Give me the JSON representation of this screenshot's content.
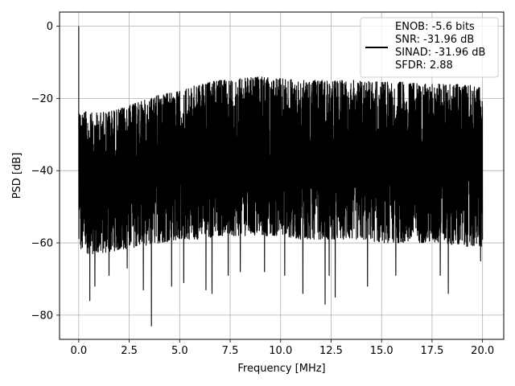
{
  "chart_data": {
    "type": "line",
    "title": "",
    "xlabel": "Frequency [MHz]",
    "ylabel": "PSD [dB]",
    "xlim": [
      -0.95,
      21.05
    ],
    "ylim": [
      -86.7,
      3.9
    ],
    "xticks": [
      0.0,
      2.5,
      5.0,
      7.5,
      10.0,
      12.5,
      15.0,
      17.5,
      20.0
    ],
    "xtick_labels": [
      "0.0",
      "2.5",
      "5.0",
      "7.5",
      "10.0",
      "12.5",
      "15.0",
      "17.5",
      "20.0"
    ],
    "yticks": [
      0,
      -20,
      -40,
      -60,
      -80
    ],
    "ytick_labels": [
      "0",
      "−20",
      "−40",
      "−60",
      "−80"
    ],
    "grid": true,
    "legend_placement": "upper-right",
    "series": [
      {
        "name": "ENOB: -5.6 bits\nSNR: -31.96 dB\nSINAD: -31.96 dB\nSFDR: 2.88",
        "color": "#000000",
        "x_range": [
          0.0,
          20.0
        ],
        "envelope": {
          "x": [
            0.0,
            0.5,
            1.0,
            2.0,
            3.0,
            4.0,
            5.0,
            6.0,
            7.0,
            8.0,
            9.0,
            10.0,
            11.0,
            12.0,
            13.0,
            14.0,
            15.0,
            16.0,
            17.0,
            18.0,
            19.0,
            20.0
          ],
          "upper": [
            -23,
            -24,
            -24,
            -23,
            -21,
            -19,
            -18,
            -16,
            -15,
            -14.5,
            -14,
            -14.5,
            -15,
            -15,
            -15,
            -15,
            -15.5,
            -15.5,
            -16,
            -16,
            -16,
            -17
          ],
          "lower": [
            -62,
            -63,
            -63,
            -62,
            -61,
            -60,
            -59,
            -59,
            -58,
            -58,
            -58,
            -58,
            -59,
            -59,
            -59,
            -59,
            -60,
            -60,
            -60,
            -60,
            -61,
            -61
          ]
        },
        "peaks": [
          {
            "x": 0.0,
            "y": 0.0
          },
          {
            "x": 0.05,
            "y": -50
          },
          {
            "x": 0.55,
            "y": -76
          },
          {
            "x": 0.8,
            "y": -72
          },
          {
            "x": 1.5,
            "y": -69
          },
          {
            "x": 2.4,
            "y": -67
          },
          {
            "x": 3.2,
            "y": -73
          },
          {
            "x": 3.6,
            "y": -83
          },
          {
            "x": 4.6,
            "y": -72
          },
          {
            "x": 5.2,
            "y": -71
          },
          {
            "x": 6.3,
            "y": -73
          },
          {
            "x": 6.6,
            "y": -74
          },
          {
            "x": 7.4,
            "y": -69
          },
          {
            "x": 8.0,
            "y": -68
          },
          {
            "x": 9.2,
            "y": -68
          },
          {
            "x": 10.2,
            "y": -69
          },
          {
            "x": 11.1,
            "y": -74
          },
          {
            "x": 12.2,
            "y": -77
          },
          {
            "x": 12.4,
            "y": -69
          },
          {
            "x": 12.7,
            "y": -75
          },
          {
            "x": 14.3,
            "y": -72
          },
          {
            "x": 15.7,
            "y": -69
          },
          {
            "x": 17.9,
            "y": -69
          },
          {
            "x": 18.3,
            "y": -74
          },
          {
            "x": 19.9,
            "y": -65
          }
        ]
      }
    ]
  }
}
